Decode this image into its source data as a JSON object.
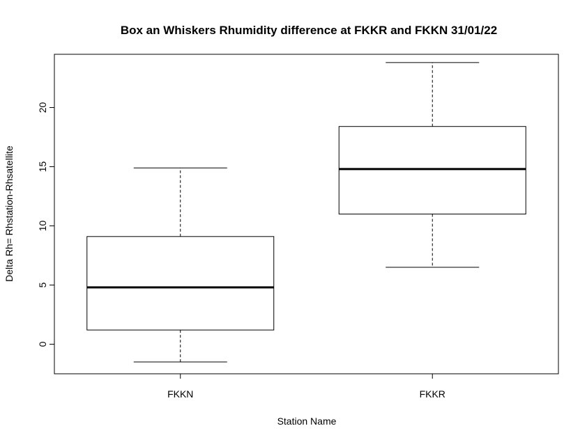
{
  "chart_data": {
    "type": "boxplot",
    "title": "Box an Whiskers Rhumidity difference at FKKR and FKKN 31/01/22",
    "xlabel": "Station Name",
    "ylabel": "Delta Rh= Rhstation-Rhsatellite",
    "ylim": [
      -2.5,
      24.5
    ],
    "yticks": [
      0,
      5,
      10,
      15,
      20
    ],
    "grid": false,
    "categories": [
      "FKKN",
      "FKKR"
    ],
    "boxes": [
      {
        "category": "FKKN",
        "min": -1.5,
        "q1": 1.2,
        "median": 4.8,
        "q3": 9.1,
        "max": 14.9
      },
      {
        "category": "FKKR",
        "min": 6.5,
        "q1": 11.0,
        "median": 14.8,
        "q3": 18.4,
        "max": 23.8
      }
    ]
  }
}
